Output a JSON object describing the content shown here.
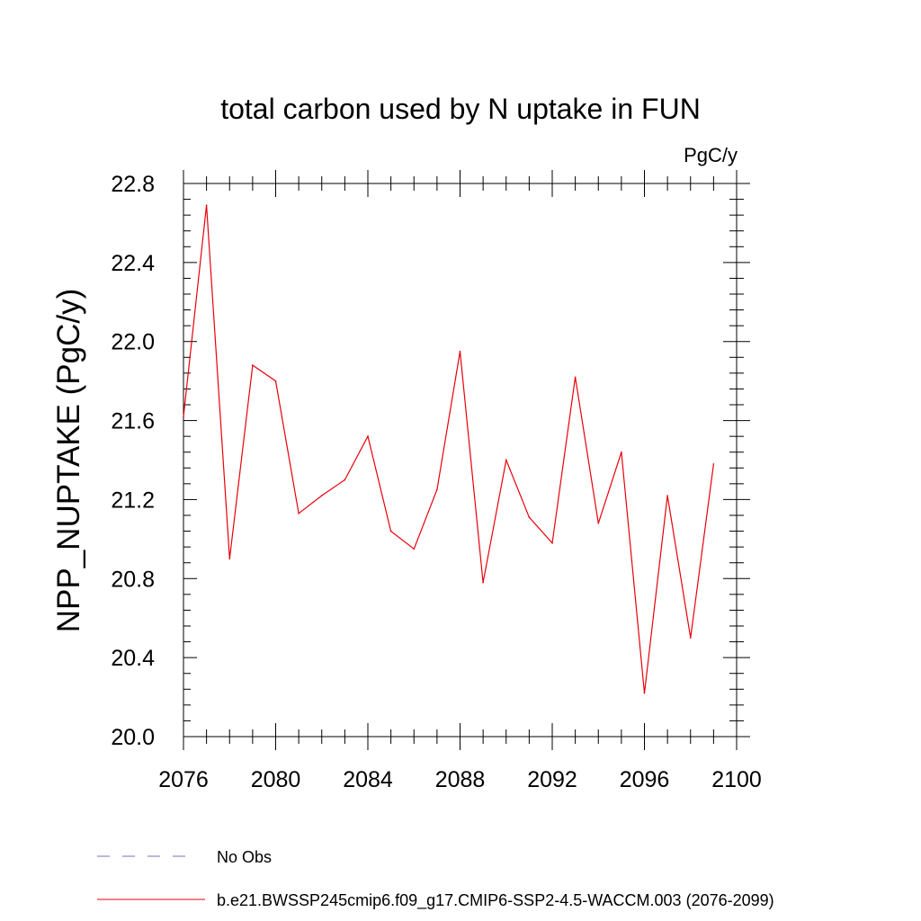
{
  "chart_data": {
    "type": "line",
    "title": "total carbon used by N uptake in FUN",
    "units_label": "PgC/y",
    "ylabel": "NPP_NUPTAKE  (PgC/y)",
    "xlabel": "",
    "xlim": [
      2076,
      2100
    ],
    "ylim": [
      20.0,
      22.8
    ],
    "x_ticks": [
      "2076",
      "2080",
      "2084",
      "2088",
      "2092",
      "2096",
      "2100"
    ],
    "x_tick_values": [
      2076,
      2080,
      2084,
      2088,
      2092,
      2096,
      2100
    ],
    "y_ticks": [
      "20.0",
      "20.4",
      "20.8",
      "21.2",
      "21.6",
      "22.0",
      "22.4",
      "22.8"
    ],
    "y_tick_values": [
      20.0,
      20.4,
      20.8,
      21.2,
      21.6,
      22.0,
      22.4,
      22.8
    ],
    "series": [
      {
        "name": "b.e21.BWSSP245cmip6.f09_g17.CMIP6-SSP2-4.5-WACCM.003 (2076-2099)",
        "color": "#e8000b",
        "x": [
          2076,
          2077,
          2078,
          2079,
          2080,
          2081,
          2082,
          2083,
          2084,
          2085,
          2086,
          2087,
          2088,
          2089,
          2090,
          2091,
          2092,
          2093,
          2094,
          2095,
          2096,
          2097,
          2098,
          2099
        ],
        "values": [
          21.62,
          22.69,
          20.9,
          21.88,
          21.8,
          21.13,
          21.22,
          21.3,
          21.52,
          21.04,
          20.95,
          21.25,
          21.95,
          20.78,
          21.4,
          21.11,
          20.98,
          21.82,
          21.08,
          21.44,
          20.22,
          21.22,
          20.5,
          21.38
        ]
      }
    ],
    "legend": [
      {
        "label": "No Obs",
        "style": "dashed",
        "color": "#7a6fb5"
      },
      {
        "label": "b.e21.BWSSP245cmip6.f09_g17.CMIP6-SSP2-4.5-WACCM.003 (2076-2099)",
        "style": "solid",
        "color": "#e8000b"
      }
    ],
    "legend_position": "bottom-left",
    "grid": false
  }
}
